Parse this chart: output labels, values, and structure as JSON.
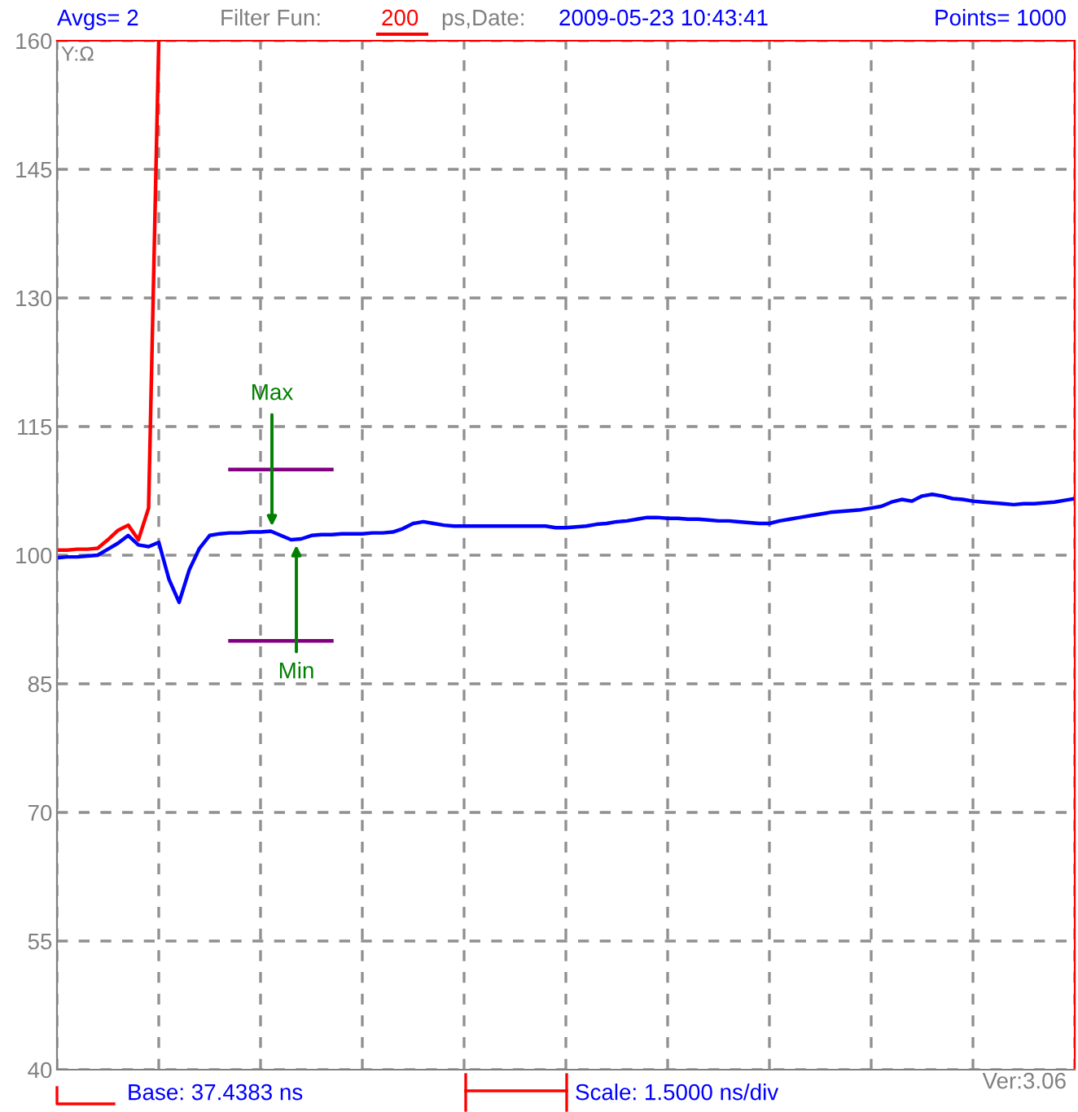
{
  "chart_data": {
    "type": "line",
    "ylabel": "Y:Ω",
    "categories": [
      null,
      null,
      null,
      null,
      null,
      null,
      null,
      null,
      null,
      null,
      null,
      null,
      null,
      null,
      null,
      null,
      null,
      null,
      null,
      null,
      null,
      null,
      null,
      null,
      null,
      null,
      null,
      null,
      null,
      null,
      null,
      null,
      null,
      null,
      null,
      null,
      null,
      null,
      null,
      null,
      null,
      null,
      null,
      null,
      null,
      null,
      null,
      null,
      null,
      null,
      null,
      null,
      null,
      null,
      null,
      null,
      null,
      null,
      null,
      null,
      null,
      null,
      null,
      null,
      null,
      null,
      null,
      null,
      null,
      null,
      null,
      null,
      null,
      null,
      null,
      null,
      null,
      null,
      null,
      null,
      null,
      null,
      null,
      null,
      null,
      null,
      null,
      null,
      null,
      null,
      null,
      null,
      null,
      null,
      null,
      null,
      null,
      null,
      null,
      null,
      null
    ],
    "ylim": [
      40,
      160
    ],
    "yticks": [
      40,
      55,
      70,
      85,
      100,
      115,
      130,
      145,
      160
    ],
    "tick_labels": "y",
    "grid": true,
    "marker": "none",
    "line_style": "solid",
    "series": [
      {
        "color": "#ff0000",
        "values": [
          100.6,
          100.6,
          100.7,
          100.7,
          100.8,
          101.8,
          102.9,
          103.5,
          101.8,
          105.5,
          160,
          null,
          null,
          null,
          null,
          null,
          null,
          null,
          null,
          null,
          null,
          null,
          null,
          null,
          null,
          null,
          null,
          null,
          null,
          null,
          null,
          null,
          null,
          null,
          null,
          null,
          null,
          null,
          null,
          null,
          null,
          null,
          null,
          null,
          null,
          null,
          null,
          null,
          null,
          null,
          null,
          null,
          null,
          null,
          null,
          null,
          null,
          null,
          null,
          null,
          null,
          null,
          null,
          null,
          null,
          null,
          null,
          null,
          null,
          null,
          null,
          null,
          null,
          null,
          null,
          null,
          null,
          null,
          null,
          null,
          null,
          null,
          null,
          null,
          null,
          null,
          null,
          null,
          null,
          null,
          null,
          null,
          null,
          null,
          null,
          null,
          null,
          null,
          null,
          null,
          null
        ]
      },
      {
        "color": "#0000ff",
        "values": [
          99.7,
          99.8,
          99.8,
          99.9,
          100,
          100.7,
          101.4,
          102.3,
          101.2,
          101,
          101.5,
          97.2,
          94.5,
          98.3,
          100.8,
          102.3,
          102.5,
          102.6,
          102.6,
          102.7,
          102.7,
          102.8,
          102.3,
          101.8,
          101.9,
          102.3,
          102.4,
          102.4,
          102.5,
          102.5,
          102.5,
          102.6,
          102.6,
          102.7,
          103.1,
          103.7,
          103.9,
          103.7,
          103.5,
          103.4,
          103.4,
          103.4,
          103.4,
          103.4,
          103.4,
          103.4,
          103.4,
          103.4,
          103.4,
          103.2,
          103.2,
          103.3,
          103.4,
          103.6,
          103.7,
          103.9,
          104,
          104.2,
          104.4,
          104.4,
          104.3,
          104.3,
          104.2,
          104.2,
          104.1,
          104,
          104,
          103.9,
          103.8,
          103.7,
          103.7,
          104,
          104.2,
          104.4,
          104.6,
          104.8,
          105,
          105.1,
          105.2,
          105.3,
          105.5,
          105.7,
          106.2,
          106.5,
          106.3,
          106.9,
          107.1,
          106.9,
          106.6,
          106.5,
          106.3,
          106.2,
          106.1,
          106,
          105.9,
          106,
          106,
          106.1,
          106.2,
          106.4,
          106.6
        ]
      },
      {
        "color": "#800080",
        "values": [
          null,
          null,
          null,
          null,
          null,
          null,
          null,
          null,
          null,
          null,
          null,
          null,
          null,
          null,
          null,
          null,
          null,
          110,
          110,
          110,
          110,
          110,
          110,
          110,
          110,
          110,
          110,
          110,
          null,
          null,
          null,
          null,
          null,
          null,
          null,
          null,
          null,
          null,
          null,
          null,
          null,
          null,
          null,
          null,
          null,
          null,
          null,
          null,
          null,
          null,
          null,
          null,
          null,
          null,
          null,
          null,
          null,
          null,
          null,
          null,
          null,
          null,
          null,
          null,
          null,
          null,
          null,
          null,
          null,
          null,
          null,
          null,
          null,
          null,
          null,
          null,
          null,
          null,
          null,
          null,
          null,
          null,
          null,
          null,
          null,
          null,
          null,
          null,
          null,
          null,
          null,
          null,
          null,
          null,
          null,
          null,
          null,
          null,
          null,
          null,
          null
        ]
      },
      {
        "color": "#800080",
        "values": [
          null,
          null,
          null,
          null,
          null,
          null,
          null,
          null,
          null,
          null,
          null,
          null,
          null,
          null,
          null,
          null,
          null,
          90,
          90,
          90,
          90,
          90,
          90,
          90,
          90,
          90,
          90,
          90,
          null,
          null,
          null,
          null,
          null,
          null,
          null,
          null,
          null,
          null,
          null,
          null,
          null,
          null,
          null,
          null,
          null,
          null,
          null,
          null,
          null,
          null,
          null,
          null,
          null,
          null,
          null,
          null,
          null,
          null,
          null,
          null,
          null,
          null,
          null,
          null,
          null,
          null,
          null,
          null,
          null,
          null,
          null,
          null,
          null,
          null,
          null,
          null,
          null,
          null,
          null,
          null,
          null,
          null,
          null,
          null,
          null,
          null,
          null,
          null,
          null,
          null,
          null,
          null,
          null,
          null,
          null,
          null,
          null,
          null,
          null,
          null,
          null
        ]
      }
    ],
    "annotations": [
      "Avgs= 2",
      "Filter Fun:",
      "200",
      "ps,Date:",
      "2009-05-23 10:43:41",
      "Points= 1000",
      "Max",
      "Min",
      "Base: 37.4383 ns",
      "Scale: 1.5000 ns/div",
      "Ver:3.06"
    ]
  }
}
